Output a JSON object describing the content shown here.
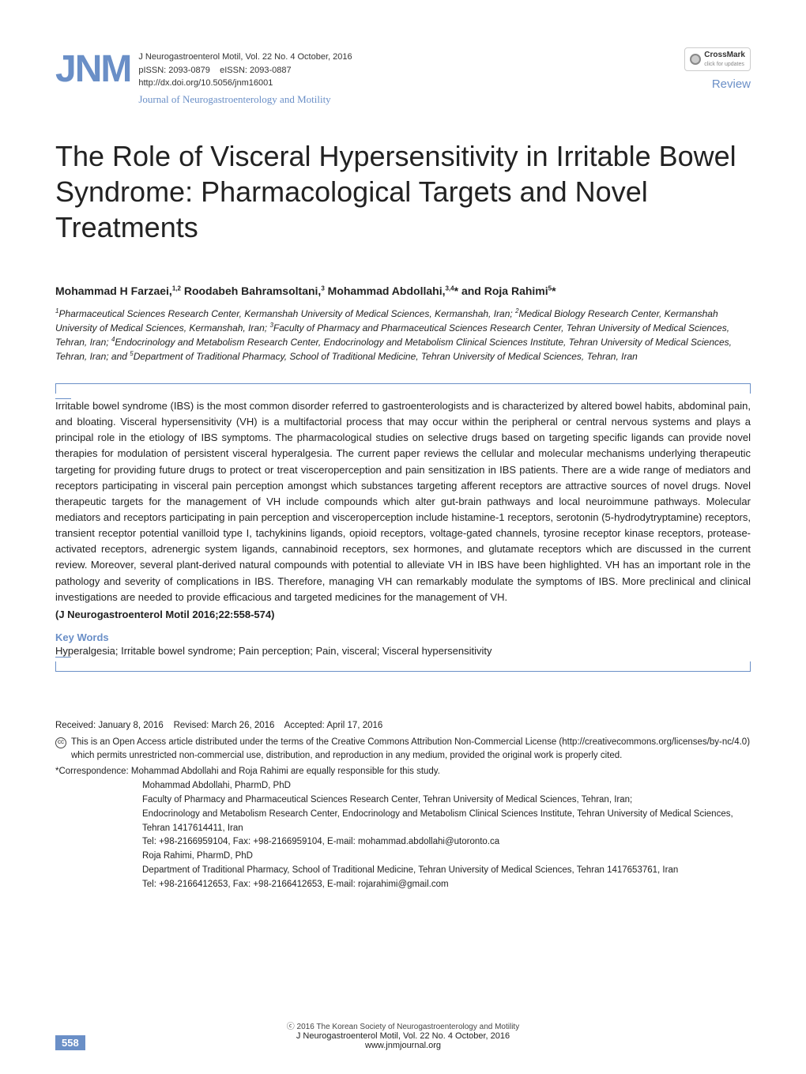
{
  "header": {
    "logo_text": "JNM",
    "journal_citation": "J Neurogastroenterol Motil, Vol. 22  No. 4  October,  2016",
    "pissn": "pISSN: 2093-0879",
    "eissn": "eISSN: 2093-0887",
    "doi": "http://dx.doi.org/10.5056/jnm16001",
    "journal_subtitle": "Journal of Neurogastroenterology and Motility",
    "crossmark_label": "CrossMark",
    "crossmark_sub": "click for updates",
    "article_type": "Review"
  },
  "title": "The Role of Visceral Hypersensitivity in Irritable Bowel Syndrome: Pharmacological Targets and Novel Treatments",
  "authors_html": "Mohammad H Farzaei,<sup>1,2</sup> Roodabeh Bahramsoltani,<sup>3</sup> Mohammad Abdollahi,<sup>3,4</sup>* and Roja Rahimi<sup>5</sup>*",
  "affiliations_html": "<sup>1</sup>Pharmaceutical Sciences Research Center, Kermanshah University of Medical Sciences, Kermanshah, Iran; <sup>2</sup>Medical Biology Research Center, Kermanshah University of Medical Sciences, Kermanshah, Iran; <sup>3</sup>Faculty of Pharmacy and Pharmaceutical Sciences Research Center, Tehran University of Medical Sciences, Tehran, Iran; <sup>4</sup>Endocrinology and Metabolism Research Center, Endocrinology and Metabolism Clinical Sciences Institute, Tehran University of Medical Sciences, Tehran, Iran; and <sup>5</sup>Department of Traditional Pharmacy, School of Traditional Medicine, Tehran University of Medical Sciences, Tehran, Iran",
  "abstract": "Irritable bowel syndrome (IBS) is the most common disorder referred to gastroenterologists and is characterized by altered bowel habits, abdominal pain, and bloating. Visceral hypersensitivity (VH) is a multifactorial process that may occur within the peripheral or central nervous systems and plays a principal role in the etiology of IBS symptoms. The pharmacological studies on selective drugs based on targeting specific ligands can provide novel therapies for modulation of persistent visceral hyperalgesia. The current paper reviews the cellular and molecular mechanisms underlying therapeutic targeting for providing future drugs to protect or treat visceroperception and pain sensitization in IBS patients. There are a wide range of mediators and receptors participating in visceral pain perception amongst which substances targeting afferent receptors are attractive sources of novel drugs. Novel therapeutic targets for the management of VH include compounds which alter gut-brain pathways and local neuroimmune pathways. Molecular mediators and receptors participating in pain perception and visceroperception include histamine-1 receptors, serotonin (5-hydrodytryptamine) receptors, transient receptor potential vanilloid type I, tachykinins ligands, opioid receptors, voltage-gated channels, tyrosine receptor kinase receptors, protease-activated receptors, adrenergic system ligands, cannabinoid receptors, sex hormones, and glutamate receptors which are discussed in the current review. Moreover, several plant-derived natural compounds with potential to alleviate VH in IBS have been highlighted. VH has an important role in the pathology and severity of complications in IBS. Therefore, managing VH can remarkably modulate the symptoms of IBS. More preclinical and clinical investigations are needed to provide efficacious and targeted medicines for the management of VH.",
  "citation": "(J Neurogastroenterol Motil 2016;22:558-574)",
  "keywords_label": "Key Words",
  "keywords": "Hyperalgesia; Irritable bowel syndrome; Pain perception; Pain, visceral; Visceral hypersensitivity",
  "meta": {
    "received": "Received: January 8, 2016",
    "revised": "Revised: March 26, 2016",
    "accepted": "Accepted: April 17, 2016",
    "license": "This is an Open Access article distributed under the terms of the Creative Commons Attribution Non-Commercial License (http://creativecommons.org/licenses/by-nc/4.0) which permits unrestricted non-commercial use, distribution, and reproduction in any medium, provided the original work is properly cited.",
    "correspondence_prefix": "*Correspondence:",
    "correspondence_note": "Mohammad Abdollahi and Roja Rahimi are equally responsible for this study.",
    "corr1_name": "Mohammad Abdollahi, PharmD, PhD",
    "corr1_addr1": "Faculty of Pharmacy and Pharmaceutical Sciences Research Center, Tehran University of Medical Sciences, Tehran, Iran;",
    "corr1_addr2": "Endocrinology and Metabolism Research Center, Endocrinology and Metabolism Clinical Sciences Institute, Tehran University of Medical Sciences, Tehran 1417614411, Iran",
    "corr1_contact": "Tel: +98-2166959104, Fax: +98-2166959104, E-mail: mohammad.abdollahi@utoronto.ca",
    "corr2_name": "Roja Rahimi, PharmD, PhD",
    "corr2_addr": "Department of Traditional Pharmacy, School of Traditional Medicine, Tehran University of Medical Sciences, Tehran 1417653761, Iran",
    "corr2_contact": "Tel: +98-2166412653, Fax: +98-2166412653, E-mail: rojarahimi@gmail.com"
  },
  "footer": {
    "copyright": "ⓒ 2016 The Korean Society of Neurogastroenterology and Motility",
    "citation": "J Neurogastroenterol Motil, Vol. 22  No. 4   October,  2016",
    "url": "www.jnmjournal.org",
    "page_number": "558"
  },
  "colors": {
    "accent": "#6a8fc7",
    "text": "#222222",
    "background": "#ffffff"
  },
  "typography": {
    "title_fontsize": 36,
    "body_fontsize": 13,
    "meta_fontsize": 11.5,
    "logo_fontsize": 48
  }
}
